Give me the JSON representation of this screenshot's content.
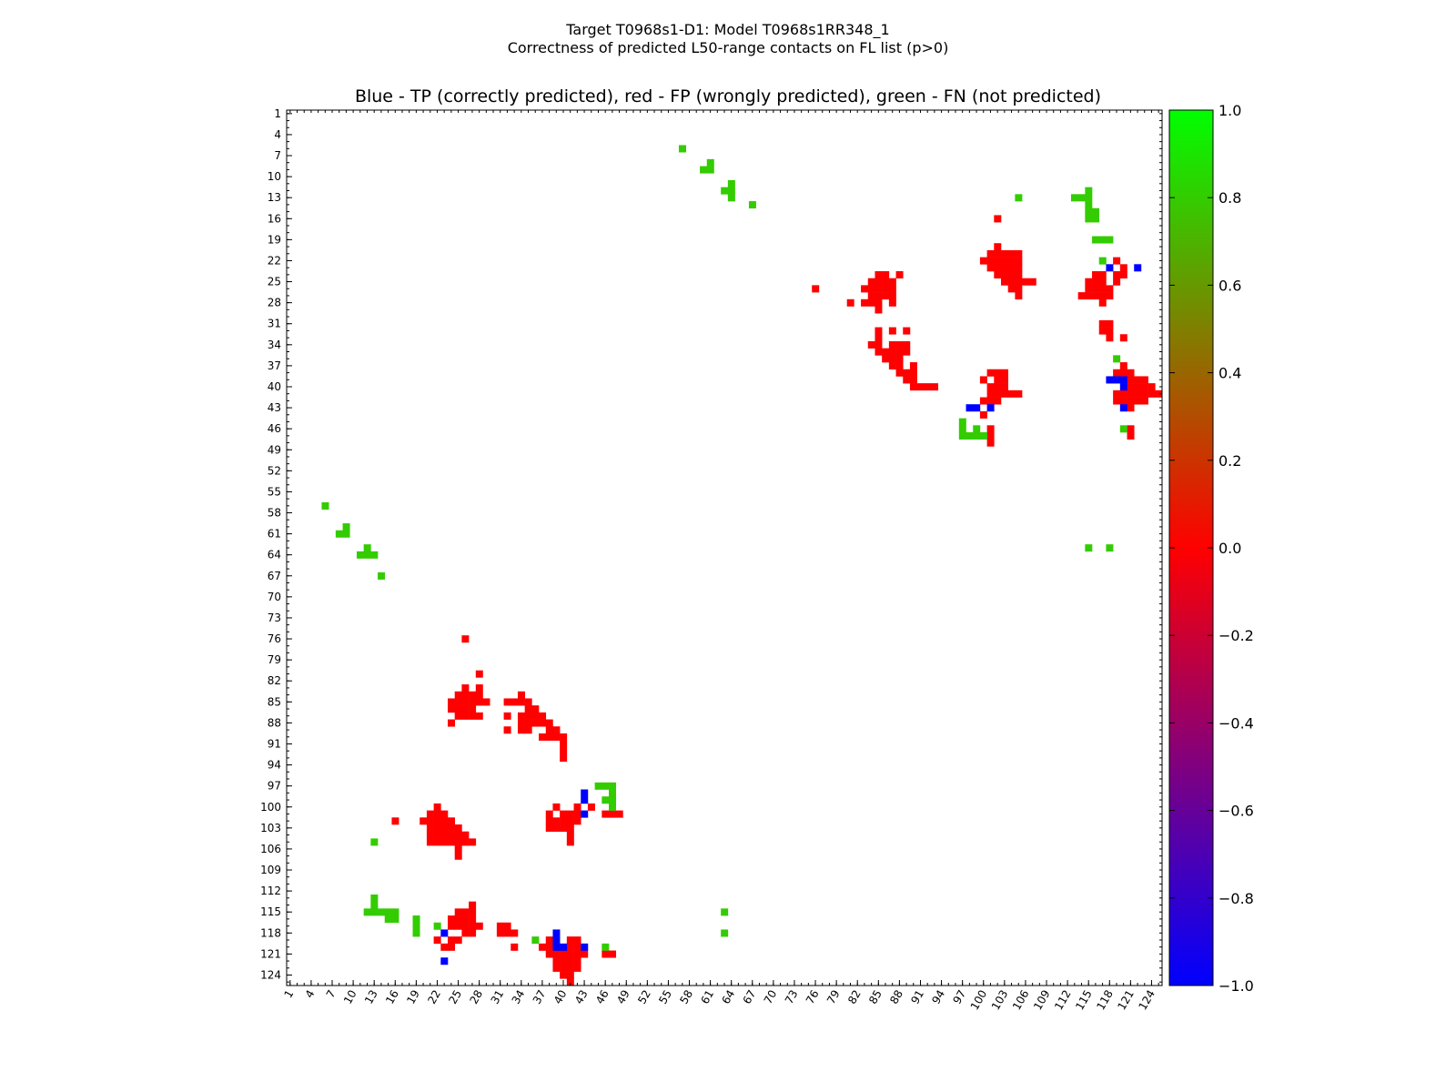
{
  "figure": {
    "title_line1": "Target T0968s1-D1: Model T0968s1RR348_1",
    "title_line2": "Correctness of predicted L50-range contacts on FL list (p>0)",
    "plot_title": "Blue - TP (correctly predicted), red - FP (wrongly predicted), green - FN (not predicted)"
  },
  "colors": {
    "tp": "#0000ff",
    "fp": "#ff0000",
    "fn": "#33cc00",
    "background": "#ffffff"
  },
  "chart_data": {
    "type": "heatmap",
    "title": "Blue - TP (correctly predicted), red - FP (wrongly predicted), green - FN (not predicted)",
    "xlabel": "",
    "ylabel": "",
    "xlim": [
      1,
      125
    ],
    "ylim": [
      1,
      125
    ],
    "x_tick_labels": [
      "1",
      "4",
      "7",
      "10",
      "13",
      "16",
      "19",
      "22",
      "25",
      "28",
      "31",
      "34",
      "37",
      "40",
      "43",
      "46",
      "49",
      "52",
      "55",
      "58",
      "61",
      "64",
      "67",
      "70",
      "73",
      "76",
      "79",
      "82",
      "85",
      "88",
      "91",
      "94",
      "97",
      "100",
      "103",
      "106",
      "109",
      "112",
      "115",
      "118",
      "121",
      "124"
    ],
    "y_tick_labels": [
      "1",
      "4",
      "7",
      "10",
      "13",
      "16",
      "19",
      "22",
      "25",
      "28",
      "31",
      "34",
      "37",
      "40",
      "43",
      "46",
      "49",
      "52",
      "55",
      "58",
      "61",
      "64",
      "67",
      "70",
      "73",
      "76",
      "79",
      "82",
      "85",
      "88",
      "91",
      "94",
      "97",
      "100",
      "103",
      "106",
      "109",
      "112",
      "115",
      "118",
      "121",
      "124"
    ],
    "colorbar": {
      "min": -1.0,
      "max": 1.0,
      "tick_labels": [
        "1.0",
        "0.8",
        "0.6",
        "0.4",
        "0.2",
        "0.0",
        "−0.2",
        "−0.4",
        "−0.6",
        "−0.8",
        "−1.0"
      ]
    },
    "legend": {
      "tp": "TP (correctly predicted)",
      "fp": "FP (wrongly predicted)",
      "fn": "FN (not predicted)"
    },
    "cell_encoding": "each cell is [i, j] = residue pair; upper triangle cells are mirrored to lower triangle",
    "fn_cells": [
      [
        57,
        6
      ],
      [
        60,
        9
      ],
      [
        61,
        9
      ],
      [
        61,
        8
      ],
      [
        63,
        12
      ],
      [
        64,
        11
      ],
      [
        64,
        12
      ],
      [
        64,
        13
      ],
      [
        67,
        14
      ],
      [
        105,
        13
      ],
      [
        113,
        13
      ],
      [
        114,
        13
      ],
      [
        115,
        13
      ],
      [
        115,
        12
      ],
      [
        115,
        14
      ],
      [
        115,
        15
      ],
      [
        116,
        15
      ],
      [
        116,
        16
      ],
      [
        115,
        16
      ],
      [
        116,
        19
      ],
      [
        117,
        19
      ],
      [
        118,
        19
      ],
      [
        117,
        22
      ],
      [
        119,
        36
      ],
      [
        120,
        46
      ],
      [
        97,
        45
      ],
      [
        97,
        46
      ],
      [
        97,
        47
      ],
      [
        98,
        47
      ],
      [
        99,
        47
      ],
      [
        99,
        46
      ],
      [
        100,
        47
      ],
      [
        115,
        63
      ],
      [
        118,
        63
      ],
      [
        46,
        97
      ],
      [
        47,
        97
      ],
      [
        47,
        98
      ],
      [
        47,
        99
      ],
      [
        46,
        120
      ]
    ],
    "tp_cells": [
      [
        118,
        23
      ],
      [
        120,
        39
      ],
      [
        120,
        40
      ],
      [
        120,
        43
      ],
      [
        98,
        43
      ],
      [
        99,
        43
      ],
      [
        101,
        43
      ],
      [
        43,
        98
      ],
      [
        118,
        39
      ],
      [
        119,
        39
      ],
      [
        122,
        23
      ]
    ],
    "fp_cells": [
      [
        76,
        26
      ],
      [
        81,
        28
      ],
      [
        83,
        26
      ],
      [
        83,
        28
      ],
      [
        84,
        25
      ],
      [
        84,
        26
      ],
      [
        84,
        27
      ],
      [
        84,
        28
      ],
      [
        85,
        24
      ],
      [
        85,
        25
      ],
      [
        85,
        26
      ],
      [
        85,
        27
      ],
      [
        85,
        28
      ],
      [
        85,
        29
      ],
      [
        86,
        24
      ],
      [
        86,
        25
      ],
      [
        86,
        26
      ],
      [
        86,
        27
      ],
      [
        87,
        25
      ],
      [
        87,
        26
      ],
      [
        87,
        27
      ],
      [
        87,
        28
      ],
      [
        88,
        24
      ],
      [
        84,
        34
      ],
      [
        85,
        32
      ],
      [
        85,
        33
      ],
      [
        85,
        34
      ],
      [
        85,
        35
      ],
      [
        86,
        35
      ],
      [
        86,
        36
      ],
      [
        87,
        32
      ],
      [
        87,
        34
      ],
      [
        87,
        35
      ],
      [
        87,
        36
      ],
      [
        87,
        37
      ],
      [
        88,
        34
      ],
      [
        88,
        35
      ],
      [
        88,
        36
      ],
      [
        88,
        37
      ],
      [
        88,
        38
      ],
      [
        89,
        32
      ],
      [
        89,
        34
      ],
      [
        89,
        35
      ],
      [
        89,
        38
      ],
      [
        89,
        39
      ],
      [
        90,
        37
      ],
      [
        90,
        38
      ],
      [
        90,
        39
      ],
      [
        90,
        40
      ],
      [
        91,
        40
      ],
      [
        92,
        40
      ],
      [
        93,
        40
      ],
      [
        100,
        22
      ],
      [
        101,
        21
      ],
      [
        101,
        22
      ],
      [
        101,
        23
      ],
      [
        102,
        20
      ],
      [
        102,
        21
      ],
      [
        102,
        22
      ],
      [
        102,
        23
      ],
      [
        102,
        24
      ],
      [
        103,
        21
      ],
      [
        103,
        22
      ],
      [
        103,
        23
      ],
      [
        103,
        24
      ],
      [
        103,
        25
      ],
      [
        104,
        21
      ],
      [
        104,
        22
      ],
      [
        104,
        23
      ],
      [
        104,
        24
      ],
      [
        104,
        25
      ],
      [
        104,
        26
      ],
      [
        105,
        21
      ],
      [
        105,
        22
      ],
      [
        105,
        23
      ],
      [
        105,
        24
      ],
      [
        105,
        25
      ],
      [
        105,
        26
      ],
      [
        105,
        27
      ],
      [
        106,
        25
      ],
      [
        107,
        25
      ],
      [
        102,
        16
      ],
      [
        100,
        39
      ],
      [
        101,
        38
      ],
      [
        101,
        40
      ],
      [
        101,
        41
      ],
      [
        101,
        42
      ],
      [
        102,
        38
      ],
      [
        102,
        39
      ],
      [
        102,
        40
      ],
      [
        102,
        41
      ],
      [
        102,
        42
      ],
      [
        103,
        38
      ],
      [
        103,
        39
      ],
      [
        103,
        40
      ],
      [
        103,
        41
      ],
      [
        104,
        41
      ],
      [
        100,
        44
      ],
      [
        101,
        46
      ],
      [
        101,
        47
      ],
      [
        101,
        48
      ],
      [
        100,
        42
      ],
      [
        105,
        41
      ],
      [
        114,
        27
      ],
      [
        115,
        25
      ],
      [
        115,
        26
      ],
      [
        115,
        27
      ],
      [
        116,
        24
      ],
      [
        116,
        25
      ],
      [
        116,
        26
      ],
      [
        116,
        27
      ],
      [
        117,
        24
      ],
      [
        117,
        25
      ],
      [
        117,
        26
      ],
      [
        117,
        27
      ],
      [
        117,
        28
      ],
      [
        118,
        26
      ],
      [
        118,
        27
      ],
      [
        119,
        22
      ],
      [
        119,
        24
      ],
      [
        119,
        25
      ],
      [
        120,
        23
      ],
      [
        120,
        24
      ],
      [
        118,
        31
      ],
      [
        118,
        32
      ],
      [
        119,
        38
      ],
      [
        119,
        41
      ],
      [
        119,
        42
      ],
      [
        120,
        37
      ],
      [
        120,
        38
      ],
      [
        120,
        41
      ],
      [
        120,
        42
      ],
      [
        121,
        38
      ],
      [
        121,
        39
      ],
      [
        121,
        40
      ],
      [
        121,
        41
      ],
      [
        121,
        42
      ],
      [
        121,
        43
      ],
      [
        122,
        39
      ],
      [
        122,
        40
      ],
      [
        122,
        41
      ],
      [
        122,
        42
      ],
      [
        123,
        39
      ],
      [
        123,
        40
      ],
      [
        123,
        41
      ],
      [
        123,
        42
      ],
      [
        124,
        40
      ],
      [
        124,
        41
      ],
      [
        125,
        41
      ],
      [
        117,
        31
      ],
      [
        117,
        32
      ],
      [
        120,
        33
      ],
      [
        118,
        33
      ],
      [
        121,
        46
      ],
      [
        121,
        47
      ]
    ]
  }
}
